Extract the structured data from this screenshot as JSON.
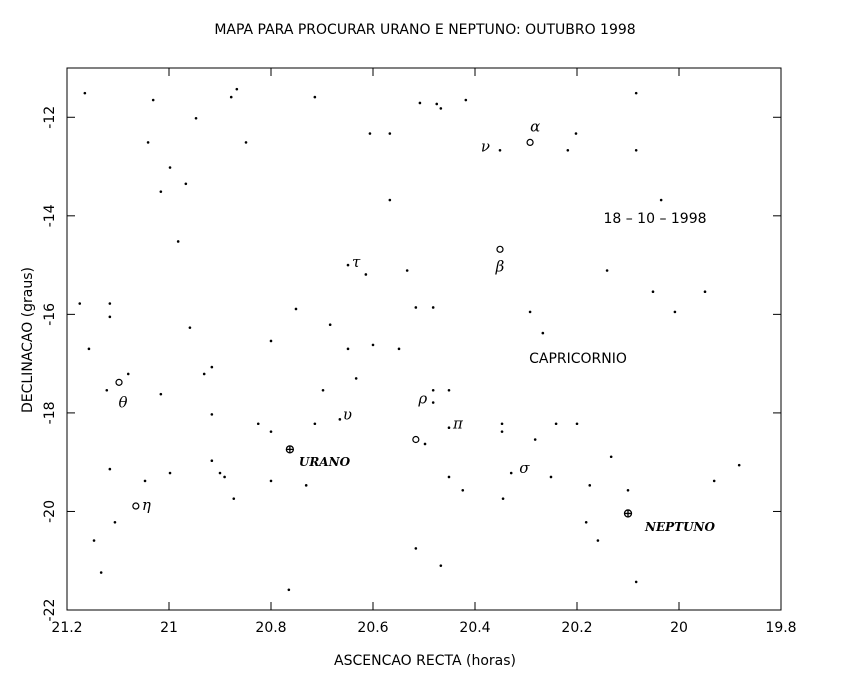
{
  "chart_data": {
    "type": "scatter",
    "title": "MAPA PARA PROCURAR URANO E NEPTUNO: OUTUBRO 1998",
    "x_label": "ASCENCAO RECTA (horas)",
    "y_label": "DECLINACAO (graus)",
    "annotations": [
      "18 – 10 – 1998",
      "CAPRICORNIO"
    ],
    "xlim": [
      21.2,
      19.8
    ],
    "xticks": [
      21.2,
      21,
      20.8,
      20.6,
      20.4,
      20.2,
      20,
      19.8
    ],
    "ylim": [
      -22,
      -11
    ],
    "yticks": [
      -12,
      -14,
      -16,
      -18,
      -20,
      -22
    ],
    "color": "#000000",
    "series": [
      {
        "marker": "dot",
        "x": [
          21.031,
          20.947,
          21.041,
          20.998,
          21.016,
          20.967,
          20.878,
          20.867,
          20.849,
          20.714,
          20.606,
          20.567,
          20.508,
          20.475,
          20.467,
          20.418,
          20.202,
          20.218,
          20.084,
          20.084,
          20.035,
          20.567,
          20.982,
          20.614,
          20.533,
          20.141,
          20.051,
          19.949,
          21.175,
          21.116,
          21.116,
          20.959,
          20.751,
          20.516,
          20.482,
          20.292,
          20.008,
          20.684,
          20.267,
          21.157,
          20.8,
          20.649,
          20.6,
          20.549,
          20.916,
          20.931,
          21.08,
          21.122,
          20.698,
          20.633,
          20.482,
          20.451,
          21.016,
          20.916,
          20.825,
          20.8,
          20.714,
          20.347,
          20.241,
          20.2,
          20.498,
          20.347,
          20.282,
          21.116,
          20.998,
          20.916,
          20.9,
          20.891,
          20.451,
          20.133,
          19.882,
          21.047,
          20.8,
          20.731,
          20.424,
          20.251,
          20.175,
          20.1,
          19.931,
          20.873,
          20.345,
          21.106,
          20.182,
          21.147,
          20.159,
          20.516,
          20.467,
          21.133,
          20.084,
          20.765,
          21.165
        ],
        "y": [
          -11.65,
          -12.02,
          -12.51,
          -13.02,
          -13.51,
          -13.35,
          -11.59,
          -11.43,
          -12.51,
          -11.59,
          -12.33,
          -12.33,
          -11.71,
          -11.73,
          -11.82,
          -11.65,
          -12.33,
          -12.67,
          -11.51,
          -12.67,
          -13.68,
          -13.68,
          -14.52,
          -15.19,
          -15.11,
          -15.11,
          -15.54,
          -15.54,
          -15.78,
          -15.78,
          -16.05,
          -16.27,
          -15.89,
          -15.86,
          -15.86,
          -15.95,
          -15.95,
          -16.21,
          -16.38,
          -16.7,
          -16.54,
          -16.7,
          -16.62,
          -16.7,
          -17.07,
          -17.21,
          -17.21,
          -17.54,
          -17.54,
          -17.3,
          -17.54,
          -17.54,
          -17.62,
          -18.03,
          -18.22,
          -18.38,
          -18.22,
          -18.22,
          -18.22,
          -18.22,
          -18.63,
          -18.38,
          -18.54,
          -19.14,
          -19.22,
          -18.97,
          -19.22,
          -19.3,
          -19.3,
          -18.89,
          -19.06,
          -19.38,
          -19.38,
          -19.47,
          -19.57,
          -19.3,
          -19.47,
          -19.57,
          -19.38,
          -19.74,
          -19.74,
          -20.22,
          -20.22,
          -20.59,
          -20.59,
          -20.75,
          -21.1,
          -21.24,
          -21.43,
          -21.59,
          -11.51
        ]
      },
      {
        "marker": "dot",
        "x": [
          20.351,
          20.649,
          20.482,
          20.665,
          20.451,
          20.329
        ],
        "y": [
          -12.67,
          -15.0,
          -17.79,
          -18.13,
          -18.3,
          -19.22
        ],
        "labels": [
          "ν",
          "τ",
          "ρ",
          "υ",
          "π",
          "σ"
        ]
      },
      {
        "marker": "circle",
        "x": [
          20.292,
          20.351,
          21.098,
          21.065,
          20.516
        ],
        "y": [
          -12.51,
          -14.68,
          -17.38,
          -19.89,
          -18.54
        ],
        "labels": [
          "α",
          "β",
          "θ",
          "η",
          null
        ]
      },
      {
        "marker": "planet",
        "x": [
          20.763,
          20.1
        ],
        "y": [
          -18.74,
          -20.04
        ],
        "labels": [
          "URANO",
          "NEPTUNO"
        ]
      }
    ]
  }
}
